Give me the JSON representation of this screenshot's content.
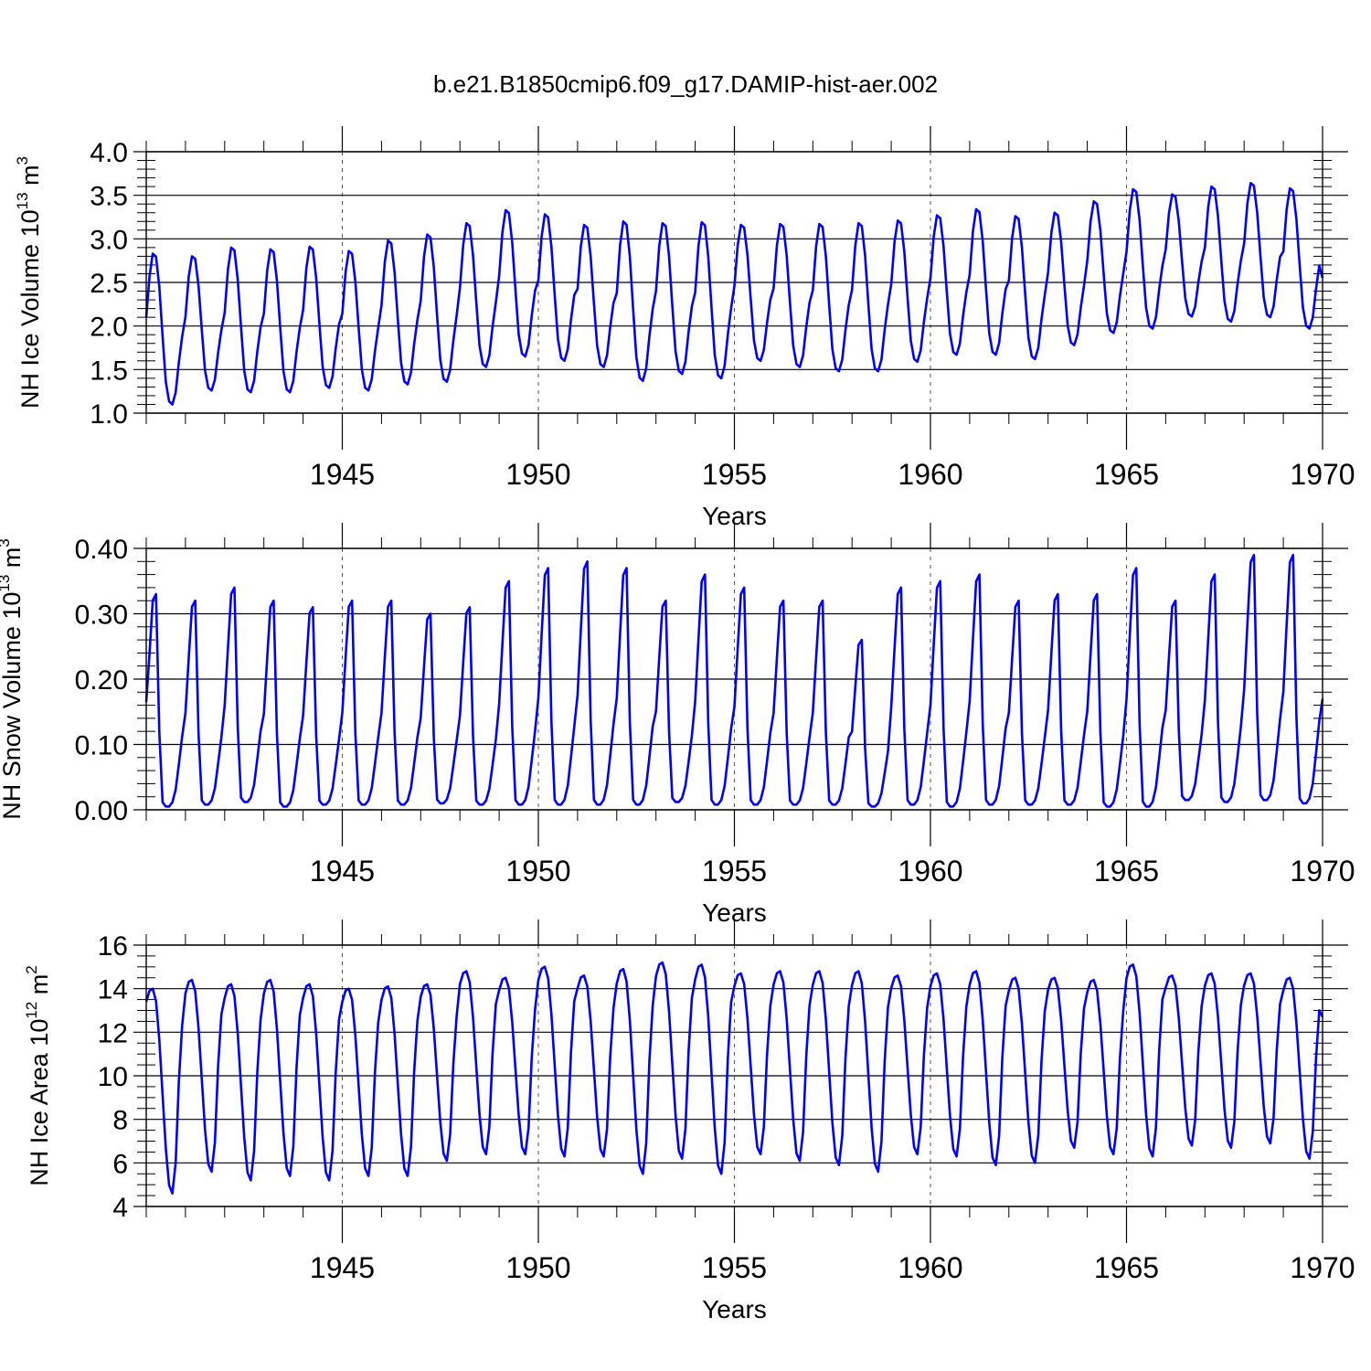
{
  "figure": {
    "title": "b.e21.B1850cmip6.f09_g17.DAMIP-hist-aer.002"
  },
  "colors": {
    "line": "#0000ff",
    "axis": "#000000",
    "grid": "#555555"
  },
  "chart_data": [
    {
      "type": "line",
      "id": "ice-volume",
      "title": "b.e21.B1850cmip6.f09_g17.DAMIP-hist-aer.002",
      "xlabel": "Years",
      "ylabel": "NH Ice Volume 10",
      "ylabel_sup": "13",
      "ylabel_unit": "m",
      "ylabel_unit_sup": "3",
      "xlim": [
        1940,
        1970
      ],
      "ylim": [
        1.0,
        4.0
      ],
      "xticks": [
        1945,
        1950,
        1955,
        1960,
        1965,
        1970
      ],
      "yticks": [
        1.0,
        1.5,
        2.0,
        2.5,
        3.0,
        3.5,
        4.0
      ],
      "ytick_labels": [
        "1.0",
        "1.5",
        "2.0",
        "2.5",
        "3.0",
        "3.5",
        "4.0"
      ],
      "ytick_minor": 0.1,
      "grid_x": true,
      "series": [
        {
          "name": "NH Ice Volume",
          "x_start": 1940.0,
          "x_step": 0.0833333,
          "yearly_max": [
            2.83,
            2.8,
            2.9,
            2.88,
            2.91,
            2.86,
            2.98,
            3.05,
            3.18,
            3.33,
            3.28,
            3.16,
            3.2,
            3.18,
            3.19,
            3.16,
            3.17,
            3.17,
            3.18,
            3.21,
            3.27,
            3.34,
            3.26,
            3.3,
            3.43,
            3.57,
            3.51,
            3.6,
            3.64,
            3.58
          ],
          "yearly_min": [
            1.1,
            1.26,
            1.24,
            1.24,
            1.29,
            1.26,
            1.33,
            1.36,
            1.53,
            1.65,
            1.6,
            1.53,
            1.37,
            1.45,
            1.4,
            1.6,
            1.53,
            1.48,
            1.48,
            1.59,
            1.67,
            1.67,
            1.62,
            1.78,
            1.92,
            1.97,
            2.11,
            2.05,
            2.1,
            1.97
          ],
          "start_value": 2.1,
          "end_value": 2.55
        }
      ]
    },
    {
      "type": "line",
      "id": "snow-volume",
      "xlabel": "Years",
      "ylabel": "NH Snow Volume 10",
      "ylabel_sup": "13",
      "ylabel_unit": "m",
      "ylabel_unit_sup": "3",
      "xlim": [
        1940,
        1970
      ],
      "ylim": [
        0.0,
        0.4
      ],
      "xticks": [
        1945,
        1950,
        1955,
        1960,
        1965,
        1970
      ],
      "yticks": [
        0.0,
        0.1,
        0.2,
        0.3,
        0.4
      ],
      "ytick_labels": [
        "0.00",
        "0.10",
        "0.20",
        "0.30",
        "0.40"
      ],
      "ytick_minor": 0.02,
      "grid_x": true,
      "series": [
        {
          "name": "NH Snow Volume",
          "x_start": 1940.0,
          "x_step": 0.0833333,
          "yearly_max": [
            0.33,
            0.32,
            0.34,
            0.32,
            0.31,
            0.32,
            0.32,
            0.3,
            0.31,
            0.35,
            0.37,
            0.38,
            0.37,
            0.32,
            0.36,
            0.34,
            0.32,
            0.32,
            0.26,
            0.34,
            0.35,
            0.36,
            0.32,
            0.33,
            0.33,
            0.37,
            0.32,
            0.36,
            0.39,
            0.39
          ],
          "yearly_min": [
            0.005,
            0.008,
            0.012,
            0.005,
            0.008,
            0.008,
            0.008,
            0.01,
            0.008,
            0.008,
            0.008,
            0.008,
            0.008,
            0.012,
            0.008,
            0.008,
            0.008,
            0.008,
            0.005,
            0.008,
            0.005,
            0.008,
            0.008,
            0.008,
            0.005,
            0.005,
            0.015,
            0.012,
            0.015,
            0.01
          ],
          "start_value": 0.165,
          "end_value": 0.17
        }
      ]
    },
    {
      "type": "line",
      "id": "ice-area",
      "xlabel": "Years",
      "ylabel": "NH Ice Area 10",
      "ylabel_sup": "12",
      "ylabel_unit": "m",
      "ylabel_unit_sup": "2",
      "xlim": [
        1940,
        1970
      ],
      "ylim": [
        4,
        16
      ],
      "xticks": [
        1945,
        1950,
        1955,
        1960,
        1965,
        1970
      ],
      "yticks": [
        4,
        6,
        8,
        10,
        12,
        14,
        16
      ],
      "ytick_labels": [
        "4",
        "6",
        "8",
        "10",
        "12",
        "14",
        "16"
      ],
      "ytick_minor": 0.5,
      "grid_x": true,
      "series": [
        {
          "name": "NH Ice Area",
          "x_start": 1940.0,
          "x_step": 0.0833333,
          "yearly_max": [
            14.0,
            14.4,
            14.2,
            14.4,
            14.2,
            14.0,
            14.1,
            14.2,
            14.8,
            14.5,
            15.0,
            14.6,
            14.9,
            15.2,
            15.1,
            14.7,
            14.8,
            14.8,
            14.8,
            14.6,
            14.7,
            14.8,
            14.5,
            14.5,
            14.4,
            15.1,
            14.6,
            14.7,
            14.7,
            14.5
          ],
          "yearly_min": [
            4.6,
            5.6,
            5.2,
            5.4,
            5.2,
            5.4,
            5.4,
            6.1,
            6.4,
            6.4,
            6.3,
            6.3,
            5.5,
            6.2,
            5.5,
            6.4,
            6.1,
            5.9,
            5.6,
            6.4,
            6.3,
            5.9,
            6.0,
            6.7,
            6.4,
            6.3,
            6.8,
            6.7,
            6.9,
            6.2
          ],
          "start_value": 13.4,
          "end_value": 12.7
        }
      ]
    }
  ]
}
